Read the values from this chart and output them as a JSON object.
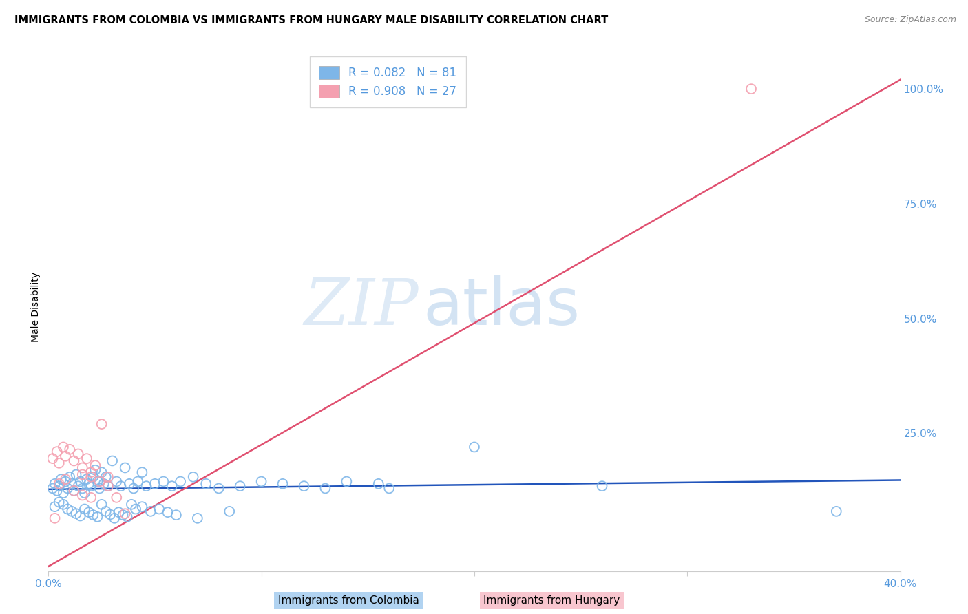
{
  "title": "IMMIGRANTS FROM COLOMBIA VS IMMIGRANTS FROM HUNGARY MALE DISABILITY CORRELATION CHART",
  "source": "Source: ZipAtlas.com",
  "xlabel_col": "Immigrants from Colombia",
  "xlabel_hun": "Immigrants from Hungary",
  "ylabel": "Male Disability",
  "xlim": [
    0.0,
    0.4
  ],
  "ylim": [
    -0.05,
    1.1
  ],
  "yticks": [
    0.0,
    0.25,
    0.5,
    0.75,
    1.0
  ],
  "ytick_labels": [
    "",
    "25.0%",
    "50.0%",
    "75.0%",
    "100.0%"
  ],
  "xticks": [
    0.0,
    0.1,
    0.2,
    0.3,
    0.4
  ],
  "xtick_labels": [
    "0.0%",
    "",
    "",
    "",
    "40.0%"
  ],
  "R_colombia": 0.082,
  "N_colombia": 81,
  "R_hungary": 0.908,
  "N_hungary": 27,
  "color_colombia": "#7EB6E8",
  "color_hungary": "#F4A0B0",
  "line_color_colombia": "#2255BB",
  "line_color_hungary": "#E05070",
  "watermark_zip": "ZIP",
  "watermark_atlas": "atlas",
  "background_color": "#FFFFFF",
  "grid_color": "#DDDDDD",
  "title_fontsize": 10.5,
  "axis_label_fontsize": 10,
  "tick_label_color": "#5599DD",
  "source_color": "#888888",
  "colombia_x": [
    0.002,
    0.003,
    0.004,
    0.005,
    0.006,
    0.007,
    0.008,
    0.009,
    0.01,
    0.011,
    0.012,
    0.013,
    0.014,
    0.015,
    0.016,
    0.017,
    0.018,
    0.019,
    0.02,
    0.021,
    0.022,
    0.023,
    0.024,
    0.025,
    0.026,
    0.027,
    0.028,
    0.03,
    0.032,
    0.034,
    0.036,
    0.038,
    0.04,
    0.042,
    0.044,
    0.046,
    0.05,
    0.054,
    0.058,
    0.062,
    0.068,
    0.074,
    0.08,
    0.09,
    0.1,
    0.11,
    0.12,
    0.13,
    0.14,
    0.155,
    0.003,
    0.005,
    0.007,
    0.009,
    0.011,
    0.013,
    0.015,
    0.017,
    0.019,
    0.021,
    0.023,
    0.025,
    0.027,
    0.029,
    0.031,
    0.033,
    0.035,
    0.037,
    0.039,
    0.041,
    0.044,
    0.048,
    0.052,
    0.056,
    0.06,
    0.07,
    0.085,
    0.16,
    0.2,
    0.26,
    0.37
  ],
  "colombia_y": [
    0.13,
    0.14,
    0.125,
    0.135,
    0.15,
    0.12,
    0.145,
    0.13,
    0.155,
    0.14,
    0.125,
    0.16,
    0.135,
    0.145,
    0.13,
    0.12,
    0.15,
    0.14,
    0.135,
    0.155,
    0.17,
    0.145,
    0.13,
    0.165,
    0.14,
    0.155,
    0.135,
    0.19,
    0.145,
    0.135,
    0.175,
    0.14,
    0.13,
    0.145,
    0.165,
    0.135,
    0.14,
    0.145,
    0.135,
    0.145,
    0.155,
    0.14,
    0.13,
    0.135,
    0.145,
    0.14,
    0.135,
    0.13,
    0.145,
    0.14,
    0.09,
    0.1,
    0.095,
    0.085,
    0.08,
    0.075,
    0.07,
    0.085,
    0.078,
    0.072,
    0.068,
    0.095,
    0.08,
    0.073,
    0.065,
    0.078,
    0.072,
    0.068,
    0.095,
    0.085,
    0.09,
    0.08,
    0.085,
    0.078,
    0.072,
    0.065,
    0.08,
    0.13,
    0.22,
    0.135,
    0.08
  ],
  "hungary_x": [
    0.002,
    0.004,
    0.005,
    0.007,
    0.008,
    0.01,
    0.012,
    0.014,
    0.016,
    0.018,
    0.02,
    0.022,
    0.025,
    0.028,
    0.032,
    0.036,
    0.016,
    0.02,
    0.024,
    0.028,
    0.005,
    0.008,
    0.012,
    0.016,
    0.02,
    0.33,
    0.003
  ],
  "hungary_y": [
    0.195,
    0.21,
    0.185,
    0.22,
    0.2,
    0.215,
    0.19,
    0.205,
    0.175,
    0.195,
    0.165,
    0.18,
    0.27,
    0.155,
    0.11,
    0.075,
    0.16,
    0.155,
    0.145,
    0.135,
    0.14,
    0.15,
    0.125,
    0.115,
    0.11,
    1.0,
    0.065
  ],
  "col_line_x": [
    0.0,
    0.4
  ],
  "col_line_y": [
    0.128,
    0.148
  ],
  "hun_line_x": [
    0.0,
    0.4
  ],
  "hun_line_y": [
    -0.04,
    1.02
  ]
}
